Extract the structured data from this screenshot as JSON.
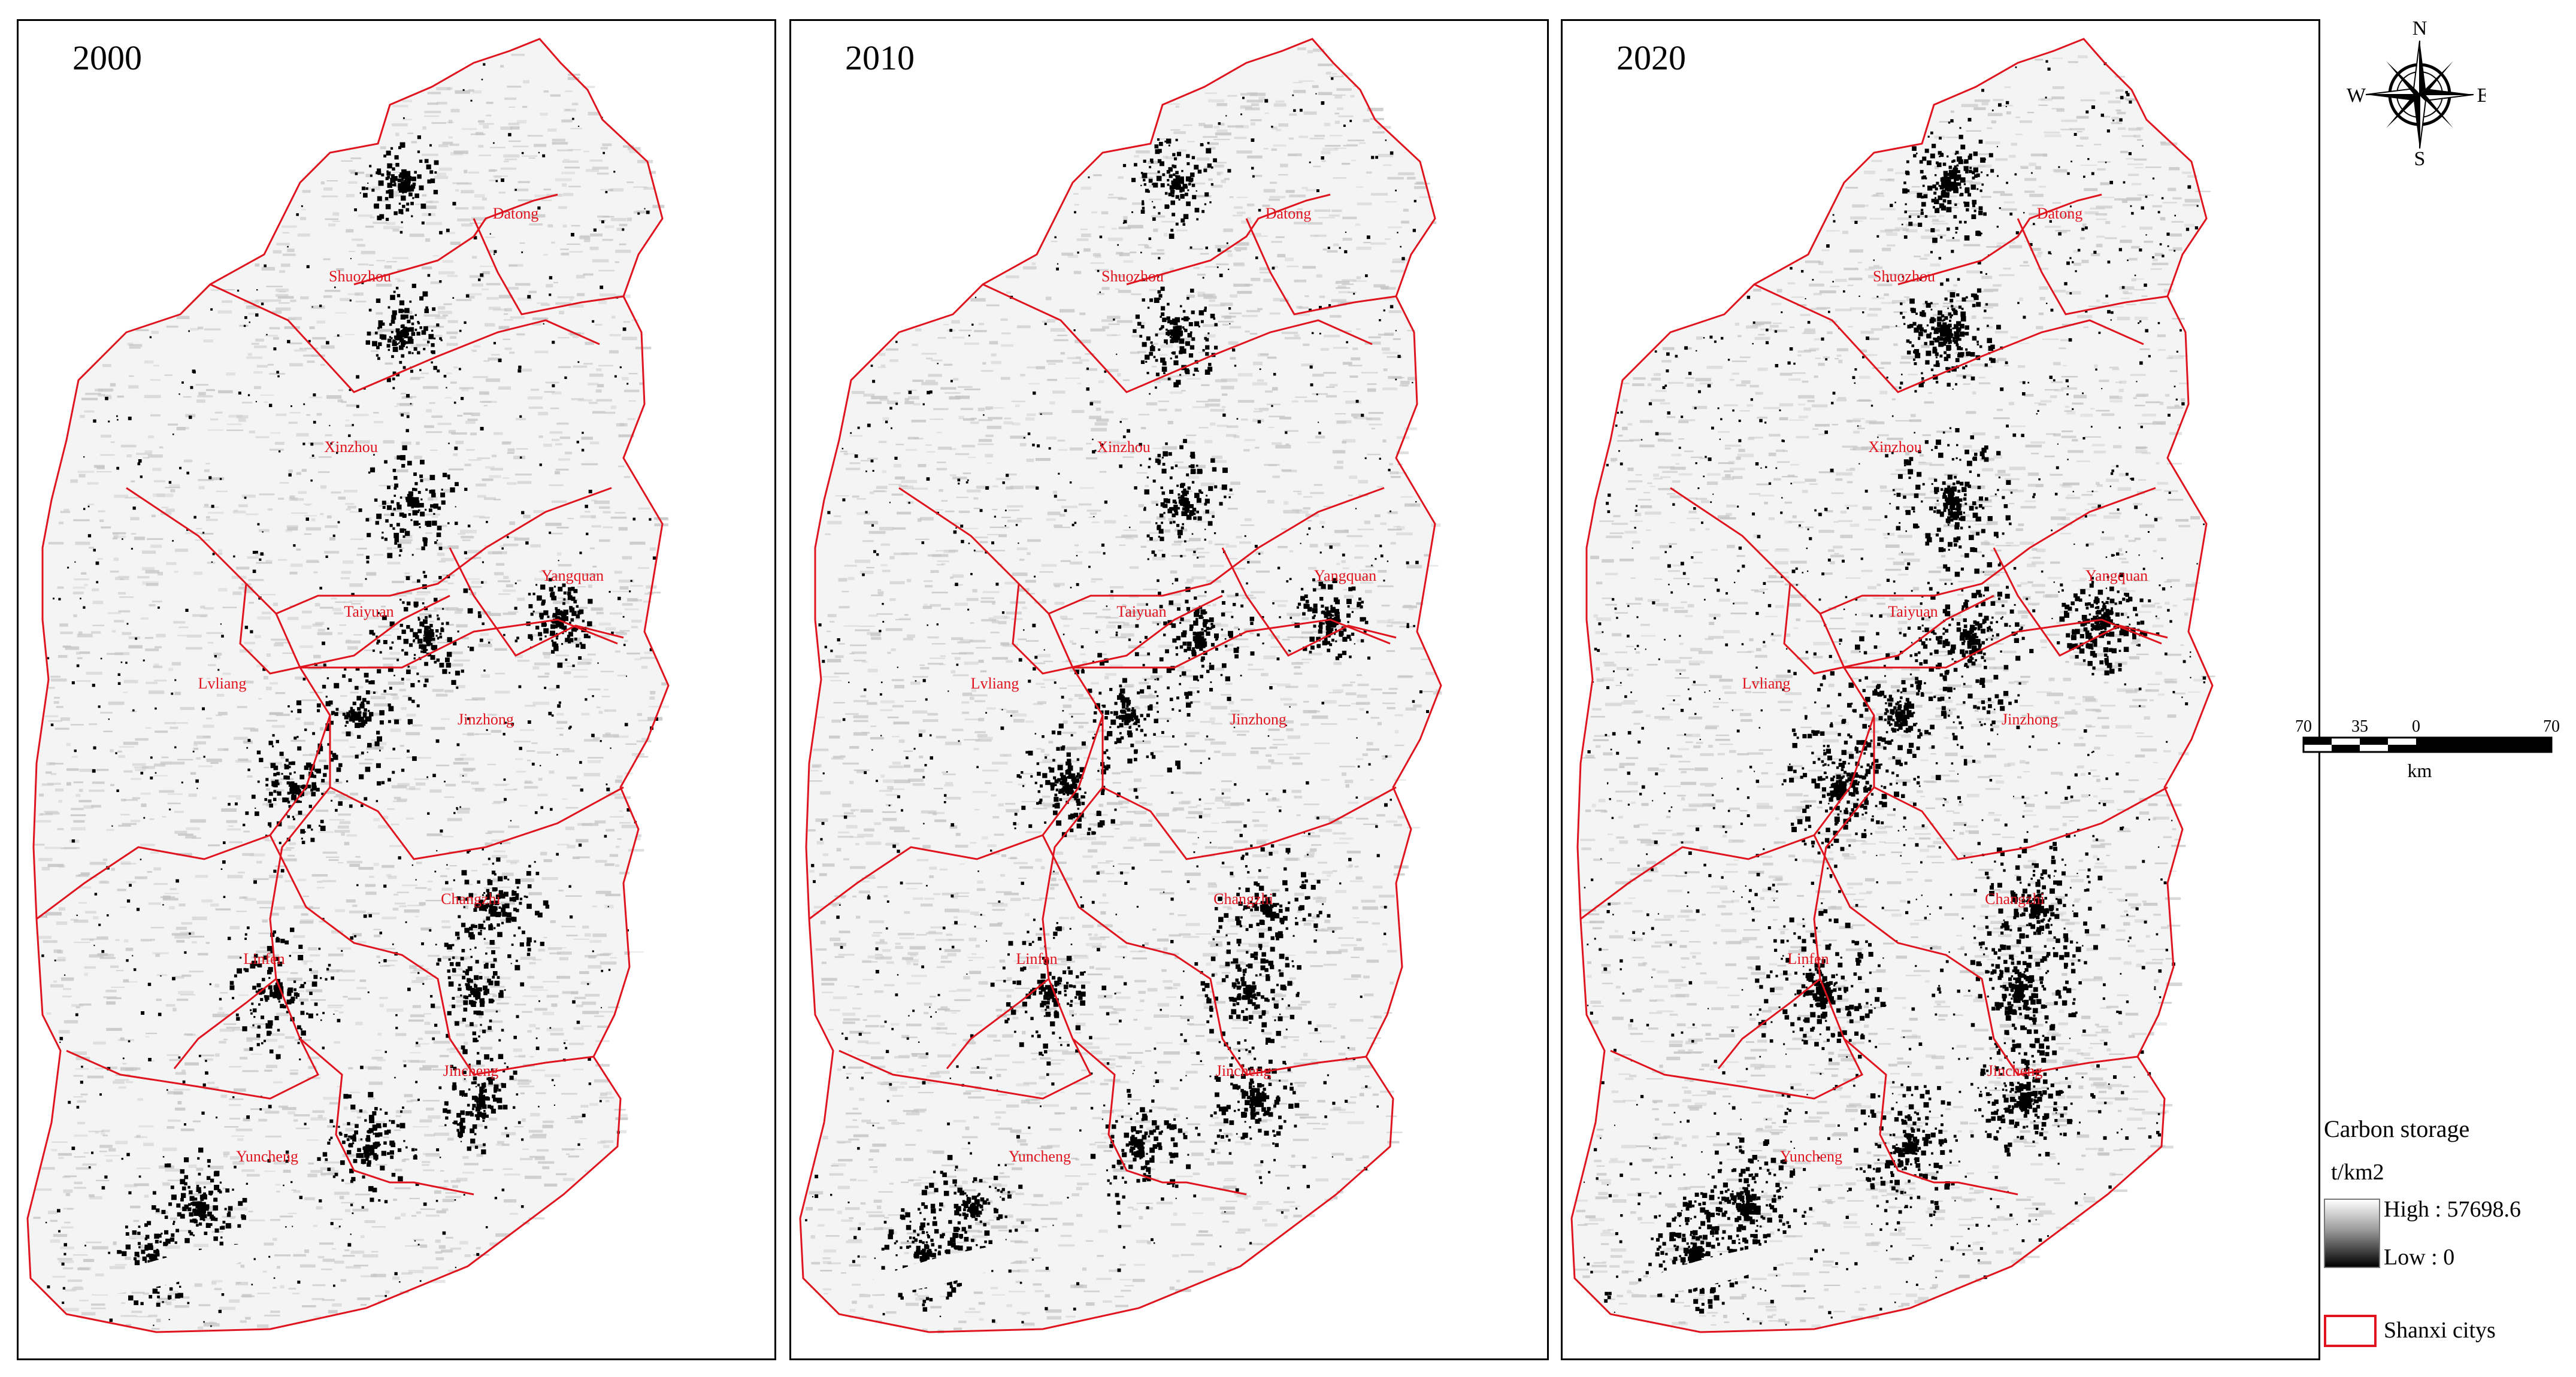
{
  "panels": [
    {
      "year": "2000",
      "seed": 11,
      "density": 1.0
    },
    {
      "year": "2010",
      "seed": 23,
      "density": 1.08
    },
    {
      "year": "2020",
      "seed": 37,
      "density": 1.6
    }
  ],
  "cities": [
    "Datong",
    "Shuozhou",
    "Xinzhou",
    "Yangquan",
    "Taiyuan",
    "Lvliang",
    "Jinzhong",
    "Changzhi",
    "Linfen",
    "Jincheng",
    "Yuncheng"
  ],
  "compass": {
    "n": "N",
    "s": "S",
    "e": "E",
    "w": "W"
  },
  "scale_bar": {
    "ticks": [
      "70",
      "35",
      "0",
      "70"
    ],
    "unit": "km"
  },
  "legend": {
    "title": "Carbon storage",
    "unit": "t/km2",
    "high_label": "High : 57698.6",
    "low_label": "Low : 0",
    "boundary_label": "Shanxi citys",
    "boundary_color": "#e0141e",
    "high_color": "#ffffff",
    "low_color": "#000000"
  }
}
